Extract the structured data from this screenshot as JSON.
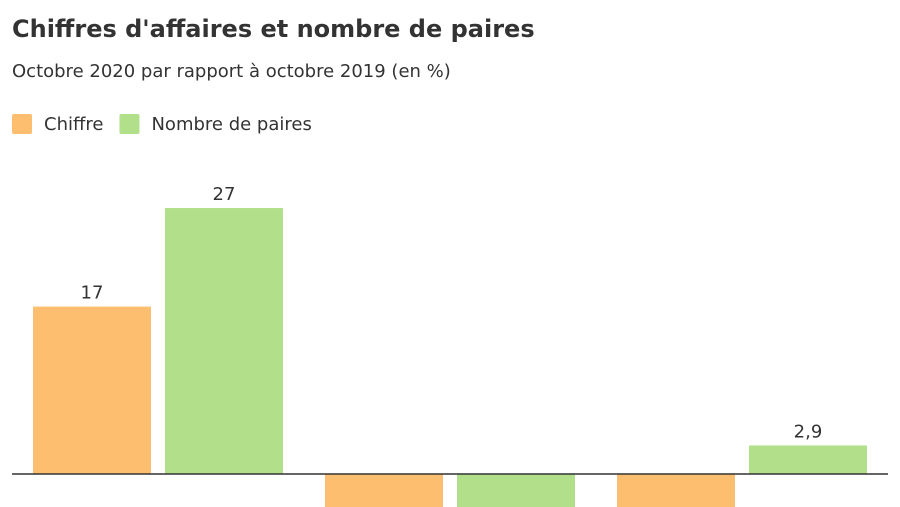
{
  "chart_data": {
    "type": "bar",
    "title": "Chiffres d'affaires et nombre de paires",
    "subtitle": "Octobre 2020 par rapport à octobre 2019 (en %)",
    "categories": [
      null,
      null,
      null
    ],
    "series": [
      {
        "name": "Chiffre",
        "color": "#fdbf6f",
        "values": [
          17,
          -3.4,
          -3.4
        ],
        "value_labels": [
          "17",
          null,
          null
        ]
      },
      {
        "name": "Nombre de paires",
        "color": "#b2df8a",
        "values": [
          27,
          -3.4,
          2.9
        ],
        "value_labels": [
          "27",
          null,
          "2,9"
        ]
      }
    ],
    "ylim": [
      -3.4,
      30
    ],
    "legend": "top-left"
  }
}
